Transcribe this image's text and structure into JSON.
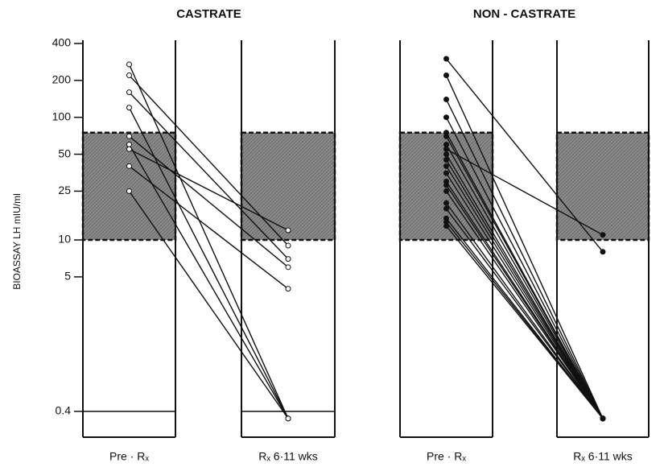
{
  "chart_data": [
    {
      "type": "line",
      "title": "CASTRATE",
      "y_label": "BIOASSAY  LH    mIU/ml",
      "categories": [
        "Pre · Rₓ",
        "Rₓ 6·11 wks"
      ],
      "log_scale": true,
      "ylim": [
        0.3,
        400
      ],
      "yticks": [
        400,
        200,
        100,
        50,
        25,
        10,
        5,
        0.4
      ],
      "shaded_range": [
        10,
        75
      ],
      "color": "#111111",
      "marker": "open",
      "series": [
        {
          "values": [
            120,
            0.35
          ]
        },
        {
          "values": [
            270,
            0.35
          ]
        },
        {
          "values": [
            60,
            0.35
          ]
        },
        {
          "values": [
            25,
            0.35
          ]
        },
        {
          "values": [
            220,
            9
          ]
        },
        {
          "values": [
            160,
            7
          ]
        },
        {
          "values": [
            70,
            6
          ]
        },
        {
          "values": [
            55,
            12
          ]
        },
        {
          "values": [
            40,
            4
          ]
        }
      ]
    },
    {
      "type": "line",
      "title": "NON - CASTRATE",
      "categories": [
        "Pre · Rₓ",
        "Rₓ 6·11 wks"
      ],
      "log_scale": true,
      "ylim": [
        0.3,
        400
      ],
      "shaded_range": [
        10,
        75
      ],
      "color": "#111111",
      "marker": "filled",
      "series": [
        {
          "values": [
            300,
            8
          ]
        },
        {
          "values": [
            220,
            0.35
          ]
        },
        {
          "values": [
            140,
            0.35
          ]
        },
        {
          "values": [
            100,
            0.35
          ]
        },
        {
          "values": [
            75,
            0.35
          ]
        },
        {
          "values": [
            70,
            0.35
          ]
        },
        {
          "values": [
            60,
            0.35
          ]
        },
        {
          "values": [
            55,
            11
          ]
        },
        {
          "values": [
            50,
            0.35
          ]
        },
        {
          "values": [
            45,
            0.35
          ]
        },
        {
          "values": [
            40,
            0.35
          ]
        },
        {
          "values": [
            35,
            0.35
          ]
        },
        {
          "values": [
            30,
            0.35
          ]
        },
        {
          "values": [
            28,
            0.35
          ]
        },
        {
          "values": [
            25,
            0.35
          ]
        },
        {
          "values": [
            20,
            0.35
          ]
        },
        {
          "values": [
            18,
            0.35
          ]
        },
        {
          "values": [
            15,
            0.35
          ]
        },
        {
          "values": [
            14,
            0.35
          ]
        },
        {
          "values": [
            13,
            0.35
          ]
        }
      ]
    }
  ]
}
